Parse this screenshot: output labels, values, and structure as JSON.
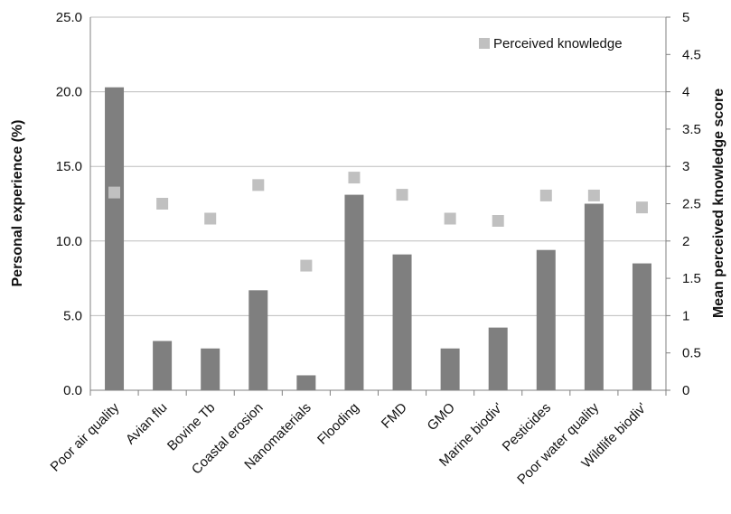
{
  "chart_data": {
    "type": "bar",
    "categories": [
      "Poor air quality",
      "Avian flu",
      "Bovine Tb",
      "Coastal erosion",
      "Nanomaterials",
      "Flooding",
      "FMD",
      "GMO",
      "Marine biodiv'",
      "Pesticides",
      "Poor water quality",
      "Wildlife biodiv'"
    ],
    "series": [
      {
        "type": "bar",
        "axis": "left",
        "color": "#7f7f7f",
        "values": [
          20.3,
          3.3,
          2.8,
          6.7,
          1.0,
          13.1,
          9.1,
          2.8,
          4.2,
          9.4,
          12.5,
          8.5
        ]
      },
      {
        "name": "Perceived knowledge",
        "type": "scatter",
        "axis": "right",
        "color": "#c0c0c0",
        "values": [
          2.65,
          2.5,
          2.3,
          2.75,
          1.67,
          2.85,
          2.62,
          2.3,
          2.27,
          2.61,
          2.61,
          2.45
        ]
      }
    ],
    "ylabel": "Personal experience (%)",
    "ylabel_right": "Mean perceived knowledge score",
    "ylim": [
      0,
      25
    ],
    "ylim_right": [
      0,
      5
    ],
    "yticks": [
      "0.0",
      "5.0",
      "10.0",
      "15.0",
      "20.0",
      "25.0"
    ],
    "yticks_right": [
      "0",
      "0.5",
      "1",
      "1.5",
      "2",
      "2.5",
      "3",
      "3.5",
      "4",
      "4.5",
      "5"
    ],
    "legend": "top-right",
    "grid": true
  }
}
